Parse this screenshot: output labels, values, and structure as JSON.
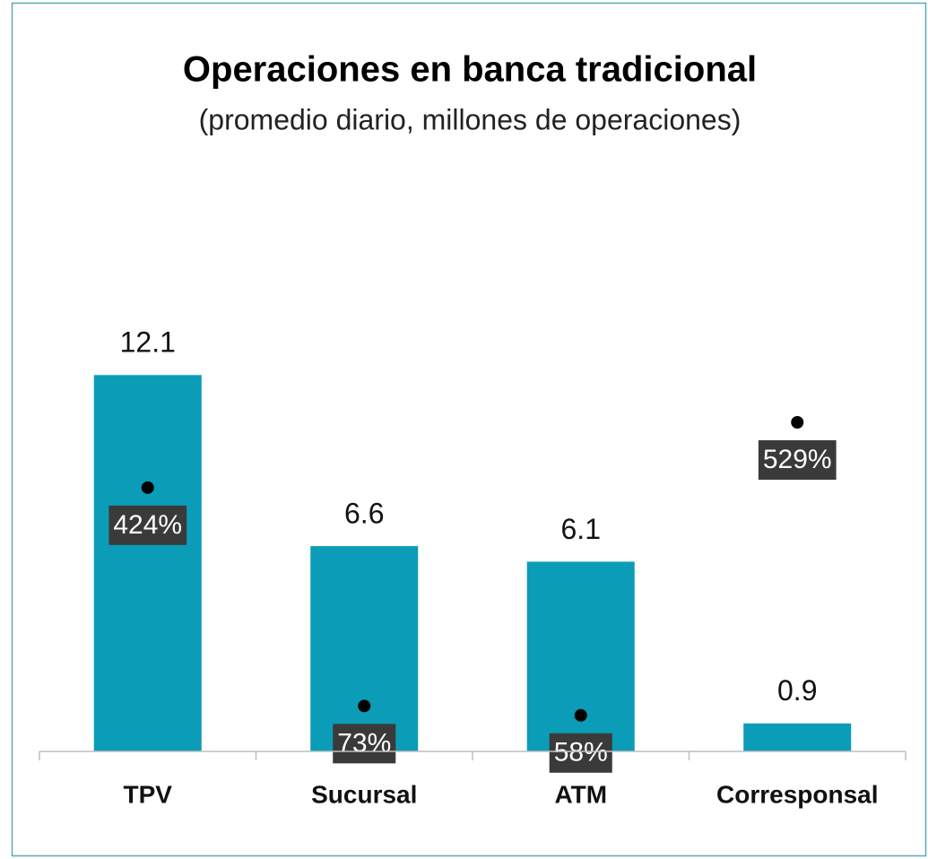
{
  "chart_data": {
    "type": "bar",
    "title": "Operaciones en banca tradicional",
    "subtitle": "(promedio diario, millones de operaciones)",
    "categories": [
      "TPV",
      "Sucursal",
      "ATM",
      "Corresponsal"
    ],
    "series": [
      {
        "color": "#0b9cb8",
        "values": [
          12.1,
          6.6,
          6.1,
          0.9
        ]
      },
      {
        "type": "scatter",
        "axis": "y2",
        "color": "#000000",
        "values": [
          424,
          73,
          58,
          529
        ],
        "value_labels": [
          "424%",
          "73%",
          "58%",
          "529%"
        ]
      }
    ],
    "ylim": [
      0,
      16
    ],
    "y2lim": [
      0,
      800
    ]
  }
}
